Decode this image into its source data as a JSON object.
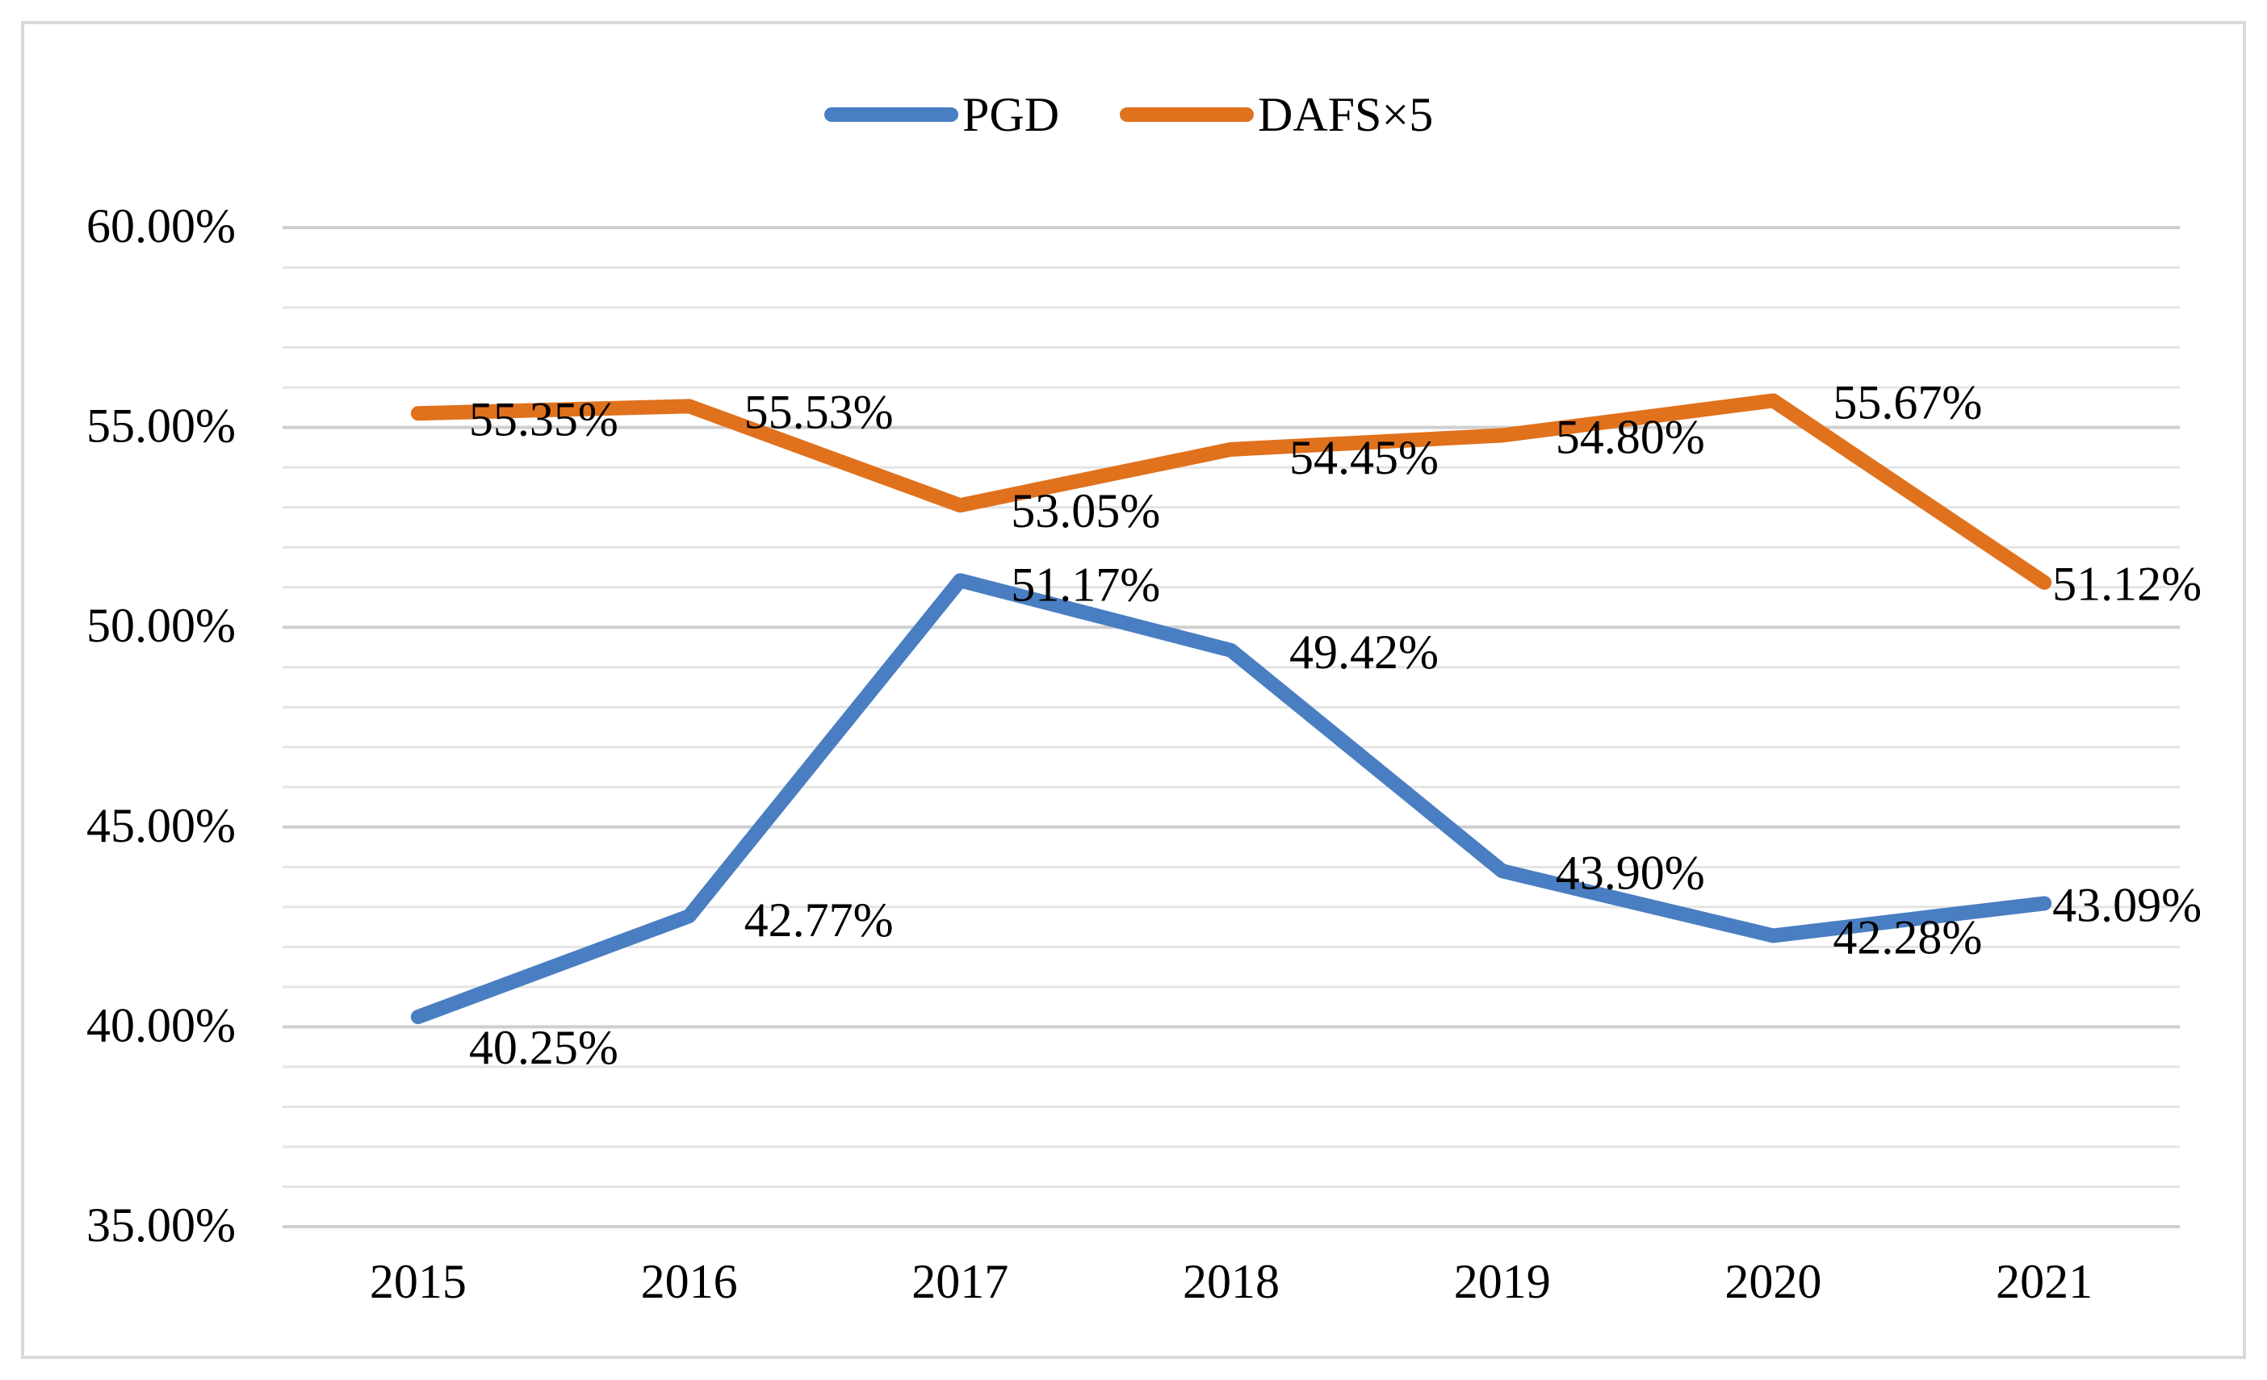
{
  "chart_data": {
    "type": "line",
    "title": "",
    "xlabel": "",
    "ylabel": "",
    "categories": [
      "2015",
      "2016",
      "2017",
      "2018",
      "2019",
      "2020",
      "2021"
    ],
    "ylim": [
      0.35,
      0.6
    ],
    "ytick_values": [
      0.35,
      0.4,
      0.45,
      0.5,
      0.55,
      0.6
    ],
    "ytick_labels": [
      "35.00%",
      "40.00%",
      "45.00%",
      "50.00%",
      "55.00%",
      "60.00%"
    ],
    "minor_grid_step": 0.01,
    "grid": true,
    "legend_position": "top-center",
    "series": [
      {
        "name": "PGD",
        "color": "#4a7ec2",
        "values": [
          0.4025,
          0.4277,
          0.5117,
          0.4942,
          0.439,
          0.4228,
          0.4309
        ],
        "labels": [
          "40.25%",
          "42.77%",
          "51.17%",
          "49.42%",
          "43.90%",
          "42.28%",
          "43.09%"
        ]
      },
      {
        "name": "DAFS×5",
        "color": "#e0711d",
        "values": [
          0.5535,
          0.5553,
          0.5305,
          0.5445,
          0.548,
          0.5567,
          0.5112
        ],
        "labels": [
          "55.35%",
          "55.53%",
          "53.05%",
          "54.45%",
          "54.80%",
          "55.67%",
          "51.12%"
        ]
      }
    ]
  }
}
